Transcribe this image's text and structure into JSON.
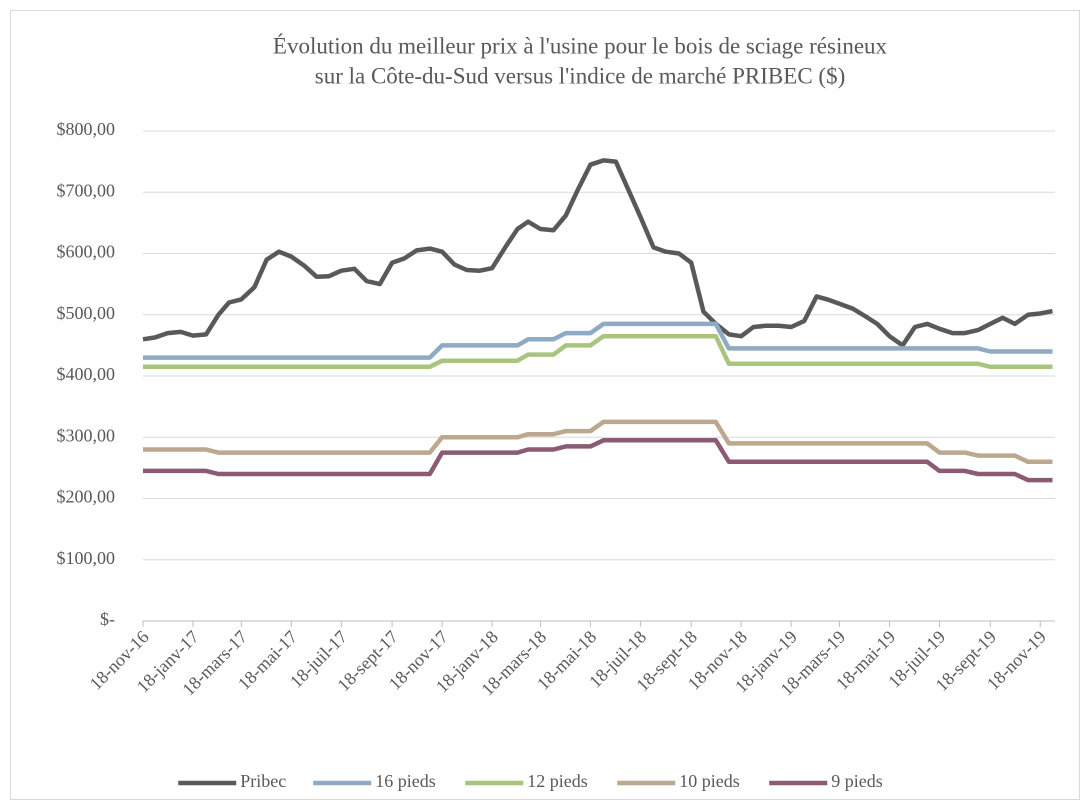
{
  "chart_data": {
    "type": "line",
    "title": [
      "Évolution du meilleur prix à l'usine pour le bois de sciage résineux",
      "sur la Côte-du-Sud versus l'indice  de marché PRIBEC ($)"
    ],
    "x": [
      "2016-11-18",
      "2016-12-03",
      "2016-12-18",
      "2017-01-03",
      "2017-01-18",
      "2017-02-03",
      "2017-02-18",
      "2017-03-03",
      "2017-03-18",
      "2017-04-03",
      "2017-04-18",
      "2017-05-03",
      "2017-05-18",
      "2017-06-03",
      "2017-06-18",
      "2017-07-03",
      "2017-07-18",
      "2017-08-03",
      "2017-08-18",
      "2017-09-03",
      "2017-09-18",
      "2017-10-03",
      "2017-10-18",
      "2017-11-03",
      "2017-11-18",
      "2017-12-03",
      "2017-12-18",
      "2018-01-03",
      "2018-01-18",
      "2018-02-03",
      "2018-02-18",
      "2018-03-03",
      "2018-03-18",
      "2018-04-03",
      "2018-04-18",
      "2018-05-03",
      "2018-05-18",
      "2018-06-03",
      "2018-06-18",
      "2018-07-03",
      "2018-07-18",
      "2018-08-03",
      "2018-08-18",
      "2018-09-03",
      "2018-09-18",
      "2018-10-03",
      "2018-10-18",
      "2018-11-03",
      "2018-11-18",
      "2018-12-03",
      "2018-12-18",
      "2019-01-03",
      "2019-01-18",
      "2019-02-03",
      "2019-02-18",
      "2019-03-03",
      "2019-03-18",
      "2019-04-03",
      "2019-04-18",
      "2019-05-03",
      "2019-05-18",
      "2019-06-03",
      "2019-06-18",
      "2019-07-03",
      "2019-07-18",
      "2019-08-03",
      "2019-08-18",
      "2019-09-03",
      "2019-09-18",
      "2019-10-03",
      "2019-10-18",
      "2019-11-03",
      "2019-11-18",
      "2019-12-03"
    ],
    "series": [
      {
        "name": "Pribec",
        "color": "#595959",
        "values": [
          460,
          463,
          470,
          472,
          466,
          468,
          500,
          520,
          525,
          545,
          590,
          603,
          595,
          580,
          562,
          563,
          572,
          575,
          555,
          550,
          585,
          592,
          605,
          608,
          603,
          582,
          573,
          572,
          576,
          610,
          640,
          652,
          640,
          638,
          662,
          705,
          745,
          752,
          750,
          705,
          660,
          610,
          603,
          600,
          585,
          505,
          485,
          468,
          465,
          480,
          482,
          482,
          480,
          490,
          530,
          525,
          518,
          510,
          498,
          485,
          465,
          450,
          480,
          485,
          477,
          470,
          470,
          475,
          485,
          495,
          485,
          500,
          502,
          506
        ]
      },
      {
        "name": "16 pieds",
        "color": "#8eaac4",
        "values": [
          430,
          430,
          430,
          430,
          430,
          430,
          430,
          430,
          430,
          430,
          430,
          430,
          430,
          430,
          430,
          430,
          430,
          430,
          430,
          430,
          430,
          430,
          430,
          430,
          450,
          450,
          450,
          450,
          450,
          450,
          450,
          460,
          460,
          460,
          470,
          470,
          470,
          485,
          485,
          485,
          485,
          485,
          485,
          485,
          485,
          485,
          485,
          445,
          445,
          445,
          445,
          445,
          445,
          445,
          445,
          445,
          445,
          445,
          445,
          445,
          445,
          445,
          445,
          445,
          445,
          445,
          445,
          445,
          440,
          440,
          440,
          440,
          440,
          440
        ]
      },
      {
        "name": "12 pieds",
        "color": "#a9c47f",
        "values": [
          415,
          415,
          415,
          415,
          415,
          415,
          415,
          415,
          415,
          415,
          415,
          415,
          415,
          415,
          415,
          415,
          415,
          415,
          415,
          415,
          415,
          415,
          415,
          415,
          425,
          425,
          425,
          425,
          425,
          425,
          425,
          435,
          435,
          435,
          450,
          450,
          450,
          465,
          465,
          465,
          465,
          465,
          465,
          465,
          465,
          465,
          465,
          420,
          420,
          420,
          420,
          420,
          420,
          420,
          420,
          420,
          420,
          420,
          420,
          420,
          420,
          420,
          420,
          420,
          420,
          420,
          420,
          420,
          415,
          415,
          415,
          415,
          415,
          415
        ]
      },
      {
        "name": "10 pieds",
        "color": "#bca88e",
        "values": [
          280,
          280,
          280,
          280,
          280,
          280,
          275,
          275,
          275,
          275,
          275,
          275,
          275,
          275,
          275,
          275,
          275,
          275,
          275,
          275,
          275,
          275,
          275,
          275,
          300,
          300,
          300,
          300,
          300,
          300,
          300,
          305,
          305,
          305,
          310,
          310,
          310,
          325,
          325,
          325,
          325,
          325,
          325,
          325,
          325,
          325,
          325,
          290,
          290,
          290,
          290,
          290,
          290,
          290,
          290,
          290,
          290,
          290,
          290,
          290,
          290,
          290,
          290,
          290,
          275,
          275,
          275,
          270,
          270,
          270,
          270,
          260,
          260,
          260
        ]
      },
      {
        "name": "9 pieds",
        "color": "#8b5a73",
        "values": [
          245,
          245,
          245,
          245,
          245,
          245,
          240,
          240,
          240,
          240,
          240,
          240,
          240,
          240,
          240,
          240,
          240,
          240,
          240,
          240,
          240,
          240,
          240,
          240,
          275,
          275,
          275,
          275,
          275,
          275,
          275,
          280,
          280,
          280,
          285,
          285,
          285,
          295,
          295,
          295,
          295,
          295,
          295,
          295,
          295,
          295,
          295,
          260,
          260,
          260,
          260,
          260,
          260,
          260,
          260,
          260,
          260,
          260,
          260,
          260,
          260,
          260,
          260,
          260,
          245,
          245,
          245,
          240,
          240,
          240,
          240,
          230,
          230,
          230
        ]
      }
    ],
    "xlim": [
      "2016-11-18",
      "2019-12-06"
    ],
    "xticks": [
      {
        "value": "2016-11-18",
        "label": "18-nov-16"
      },
      {
        "value": "2017-01-18",
        "label": "18-janv-17"
      },
      {
        "value": "2017-03-18",
        "label": "18-mars-17"
      },
      {
        "value": "2017-05-18",
        "label": "18-mai-17"
      },
      {
        "value": "2017-07-18",
        "label": "18-juil-17"
      },
      {
        "value": "2017-09-18",
        "label": "18-sept-17"
      },
      {
        "value": "2017-11-18",
        "label": "18-nov-17"
      },
      {
        "value": "2018-01-18",
        "label": "18-janv-18"
      },
      {
        "value": "2018-03-18",
        "label": "18-mars-18"
      },
      {
        "value": "2018-05-18",
        "label": "18-mai-18"
      },
      {
        "value": "2018-07-18",
        "label": "18-juil-18"
      },
      {
        "value": "2018-09-18",
        "label": "18-sept-18"
      },
      {
        "value": "2018-11-18",
        "label": "18-nov-18"
      },
      {
        "value": "2019-01-18",
        "label": "18-janv-19"
      },
      {
        "value": "2019-03-18",
        "label": "18-mars-19"
      },
      {
        "value": "2019-05-18",
        "label": "18-mai-19"
      },
      {
        "value": "2019-07-18",
        "label": "18-juil-19"
      },
      {
        "value": "2019-09-18",
        "label": "18-sept-19"
      },
      {
        "value": "2019-11-18",
        "label": "18-nov-19"
      }
    ],
    "ylim": [
      0,
      800
    ],
    "yticks": [
      {
        "value": 0,
        "label": "$-"
      },
      {
        "value": 100,
        "label": "$100,00"
      },
      {
        "value": 200,
        "label": "$200,00"
      },
      {
        "value": 300,
        "label": "$300,00"
      },
      {
        "value": 400,
        "label": "$400,00"
      },
      {
        "value": 500,
        "label": "$500,00"
      },
      {
        "value": 600,
        "label": "$600,00"
      },
      {
        "value": 700,
        "label": "$700,00"
      },
      {
        "value": 800,
        "label": "$800,00"
      }
    ],
    "grid": true,
    "legend": "bottom"
  }
}
